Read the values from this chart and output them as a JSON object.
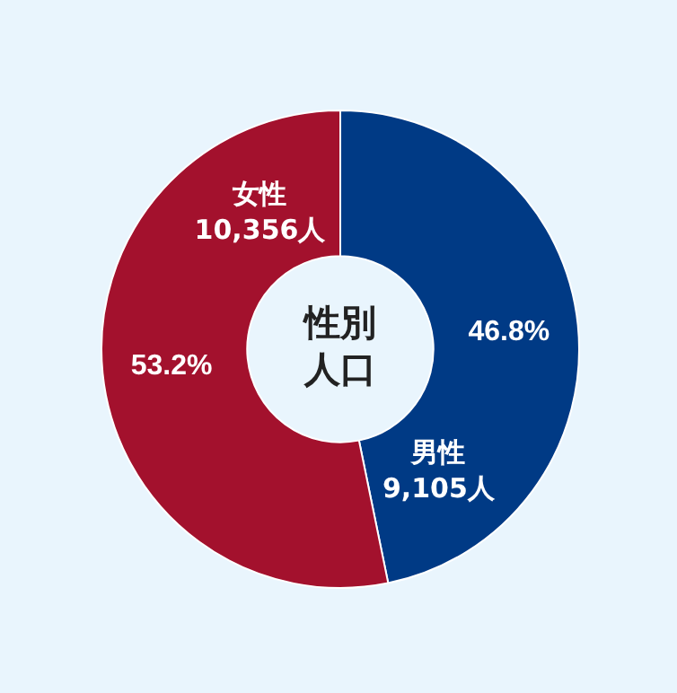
{
  "chart_data": {
    "type": "donut",
    "title": "性別人口",
    "categories": [
      "男性",
      "女性"
    ],
    "values": [
      9105,
      10356
    ],
    "value_labels": [
      "9,105人",
      "10,356人"
    ],
    "colors": [
      "#003a85",
      "#a3112d"
    ],
    "annotations": [
      "46.8%",
      "53.2%"
    ],
    "legend": false
  }
}
